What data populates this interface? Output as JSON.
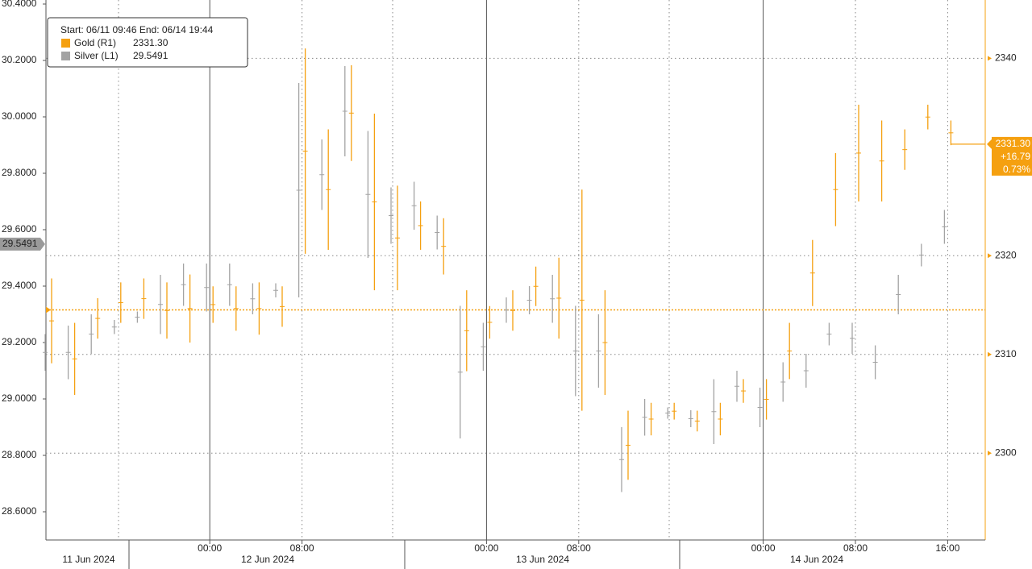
{
  "chart_data": {
    "type": "range-bars",
    "legend": {
      "range": "Start: 06/11 09:46 End: 06/14 19:44"
    },
    "categories": [
      null,
      null,
      null,
      null,
      null,
      null,
      null,
      "00:00",
      null,
      null,
      null,
      "08:00",
      null,
      null,
      null,
      null,
      null,
      null,
      null,
      "00:00",
      null,
      null,
      null,
      "08:00",
      null,
      null,
      null,
      null,
      null,
      null,
      null,
      "00:00",
      null,
      null,
      null,
      "08:00",
      null,
      null,
      null,
      "16:00"
    ],
    "day_labels": [
      "11 Jun 2024",
      "12 Jun 2024",
      "13 Jun 2024",
      "14 Jun 2024"
    ],
    "ylim": [
      28.5,
      30.4
    ],
    "yticks": [
      {
        "value": 28.6,
        "label": "28.6000"
      },
      {
        "value": 28.8,
        "label": "28.8000"
      },
      {
        "value": 29.0,
        "label": "29.0000"
      },
      {
        "value": 29.2,
        "label": "29.2000"
      },
      {
        "value": 29.4,
        "label": "29.4000"
      },
      {
        "value": 29.6,
        "label": "29.6000"
      },
      {
        "value": 29.8,
        "label": "29.8000"
      },
      {
        "value": 30.0,
        "label": "30.0000"
      },
      {
        "value": 30.2,
        "label": "30.2000"
      },
      {
        "value": 30.4,
        "label": "30.4000"
      }
    ],
    "y2lim": [
      2291.2,
      2345.5
    ],
    "y2ticks": [
      2300,
      2310,
      2320,
      2340
    ],
    "grid": true,
    "series": [
      {
        "name": "Silver (L1)",
        "color": "#a3a3a3",
        "axis": "y",
        "last": 29.5491,
        "last_label": "29.5491",
        "high": [
          29.23,
          29.26,
          29.3,
          29.28,
          29.31,
          29.44,
          29.48,
          29.48,
          29.48,
          29.41,
          29.41,
          30.12,
          29.92,
          30.18,
          29.95,
          29.75,
          29.77,
          29.65,
          29.33,
          29.27,
          29.36,
          29.4,
          29.44,
          29.33,
          29.3,
          28.9,
          29.0,
          28.97,
          28.96,
          29.07,
          29.1,
          29.04,
          29.13,
          29.16,
          29.27,
          29.27,
          29.19,
          29.44,
          29.55,
          29.67
        ],
        "low": [
          29.1,
          29.07,
          29.16,
          29.23,
          29.27,
          29.23,
          29.33,
          29.31,
          29.33,
          29.3,
          29.36,
          29.36,
          29.67,
          29.86,
          29.5,
          29.55,
          29.6,
          29.53,
          28.86,
          29.1,
          29.27,
          29.3,
          29.27,
          29.01,
          29.04,
          28.67,
          28.87,
          28.93,
          28.9,
          28.84,
          28.99,
          28.9,
          28.99,
          29.04,
          29.19,
          29.16,
          29.07,
          29.3,
          29.47,
          29.55
        ]
      },
      {
        "name": "Gold (R1)",
        "color": "#f5a010",
        "axis": "y2",
        "last": 2331.3,
        "last_label": "2331.30",
        "price_tag": [
          "2331.30",
          "+16.79",
          "0.73%"
        ],
        "previous_close": 2314.51,
        "high": [
          2317.7,
          2313.2,
          2315.7,
          2317.3,
          2317.7,
          2317.3,
          2318.1,
          2316.9,
          2316.9,
          2317.3,
          2316.9,
          2341.0,
          2332.8,
          2339.3,
          2334.4,
          2327.1,
          2325.5,
          2323.8,
          2316.5,
          2314.9,
          2316.5,
          2318.9,
          2319.8,
          2326.7,
          2316.5,
          2304.3,
          2305.1,
          2305.1,
          2304.3,
          2305.1,
          2307.5,
          2307.5,
          2313.2,
          2321.6,
          2330.4,
          2335.3,
          2333.7,
          2332.8,
          2335.3,
          2333.7
        ],
        "low": [
          2309.1,
          2305.9,
          2311.6,
          2313.2,
          2313.6,
          2311.6,
          2311.2,
          2313.2,
          2312.4,
          2312.0,
          2312.8,
          2320.2,
          2320.6,
          2329.6,
          2316.5,
          2316.5,
          2320.6,
          2318.1,
          2308.3,
          2311.6,
          2312.4,
          2314.9,
          2311.6,
          2304.3,
          2305.9,
          2297.3,
          2301.8,
          2303.4,
          2302.2,
          2301.8,
          2305.1,
          2303.4,
          2307.5,
          2314.9,
          2323.0,
          2325.5,
          2325.5,
          2328.7,
          2332.8,
          2331.2
        ]
      }
    ]
  }
}
